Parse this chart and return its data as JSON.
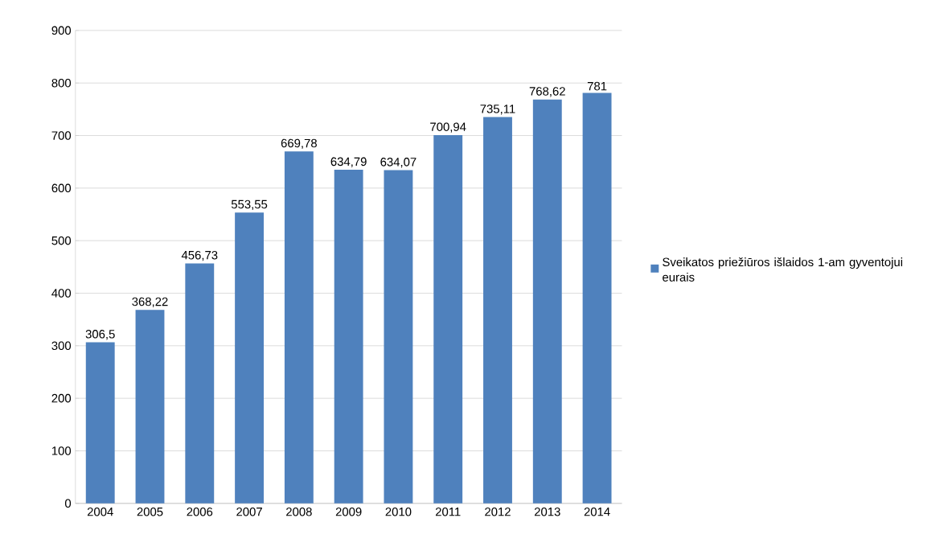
{
  "chart_data": {
    "type": "bar",
    "categories": [
      "2004",
      "2005",
      "2006",
      "2007",
      "2008",
      "2009",
      "2010",
      "2011",
      "2012",
      "2013",
      "2014"
    ],
    "series": [
      {
        "name": "Sveikatos priežiūros išlaidos 1-am gyventojui eurais",
        "color": "#4f81bd",
        "values": [
          306.5,
          368.22,
          456.73,
          553.55,
          669.78,
          634.79,
          634.07,
          700.94,
          735.11,
          768.62,
          781
        ],
        "value_labels": [
          "306,5",
          "368,22",
          "456,73",
          "553,55",
          "669,78",
          "634,79",
          "634,07",
          "700,94",
          "735,11",
          "768,62",
          "781"
        ]
      }
    ],
    "ylim": [
      0,
      900
    ],
    "yticks": [
      0,
      100,
      200,
      300,
      400,
      500,
      600,
      700,
      800,
      900
    ],
    "grid": "y",
    "legend": "right"
  }
}
